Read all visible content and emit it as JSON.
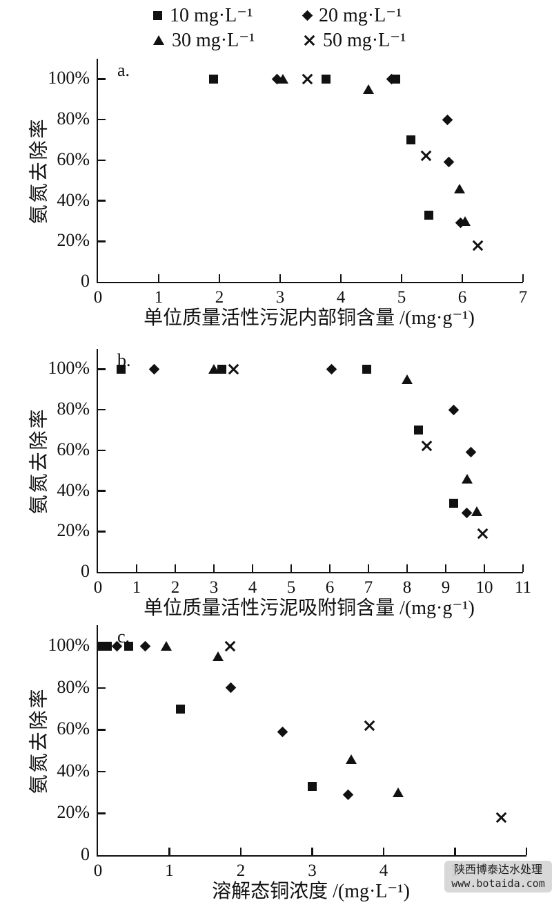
{
  "colors": {
    "marker": "#111111",
    "axis": "#111111",
    "watermark_bg": "#d5d5d5"
  },
  "legend": {
    "items": [
      {
        "label": "10 mg·L⁻¹",
        "marker": "square"
      },
      {
        "label": "20 mg·L⁻¹",
        "marker": "diamond"
      },
      {
        "label": "30 mg·L⁻¹",
        "marker": "triangle"
      },
      {
        "label": "50 mg·L⁻¹",
        "marker": "x"
      }
    ]
  },
  "watermark": {
    "line1": "陕西博泰达水处理",
    "line2": "www.botaida.com"
  },
  "chart_data": [
    {
      "type": "scatter",
      "panel_label": "a.",
      "xlabel": "单位质量活性污泥内部铜含量 /(mg·g⁻¹)",
      "ylabel": "氨氮去除率",
      "xlim": [
        0,
        7
      ],
      "ylim_pct": [
        0,
        110
      ],
      "grid": false,
      "xticks": [
        0,
        1,
        2,
        3,
        4,
        5,
        6,
        7
      ],
      "yticks": [
        {
          "value": 0,
          "label": "0"
        },
        {
          "value": 20,
          "label": "20%"
        },
        {
          "value": 40,
          "label": "40%"
        },
        {
          "value": 60,
          "label": "60%"
        },
        {
          "value": 80,
          "label": "80%"
        },
        {
          "value": 100,
          "label": "100%"
        }
      ],
      "series": [
        {
          "name": "10 mg·L⁻¹",
          "marker": "square",
          "points": [
            [
              1.9,
              100
            ],
            [
              3.75,
              100
            ],
            [
              4.9,
              100
            ],
            [
              5.15,
              70
            ],
            [
              5.45,
              33
            ]
          ]
        },
        {
          "name": "20 mg·L⁻¹",
          "marker": "diamond",
          "points": [
            [
              2.95,
              100
            ],
            [
              4.83,
              100
            ],
            [
              5.75,
              80
            ],
            [
              5.78,
              59
            ],
            [
              5.97,
              29
            ]
          ]
        },
        {
          "name": "30 mg·L⁻¹",
          "marker": "triangle",
          "points": [
            [
              3.05,
              100
            ],
            [
              4.45,
              95
            ],
            [
              5.95,
              46
            ],
            [
              6.05,
              30
            ]
          ]
        },
        {
          "name": "50 mg·L⁻¹",
          "marker": "x",
          "points": [
            [
              3.45,
              100
            ],
            [
              5.4,
              62
            ],
            [
              6.25,
              18
            ]
          ]
        }
      ]
    },
    {
      "type": "scatter",
      "panel_label": "b.",
      "xlabel": "单位质量活性污泥吸附铜含量 /(mg·g⁻¹)",
      "ylabel": "氨氮去除率",
      "xlim": [
        0,
        11
      ],
      "ylim_pct": [
        0,
        110
      ],
      "grid": false,
      "xticks": [
        0,
        1,
        2,
        3,
        4,
        5,
        6,
        7,
        8,
        9,
        10,
        11
      ],
      "yticks": [
        {
          "value": 0,
          "label": "0"
        },
        {
          "value": 20,
          "label": "20%"
        },
        {
          "value": 40,
          "label": "40%"
        },
        {
          "value": 60,
          "label": "60%"
        },
        {
          "value": 80,
          "label": "80%"
        },
        {
          "value": 100,
          "label": "100%"
        }
      ],
      "series": [
        {
          "name": "10 mg·L⁻¹",
          "marker": "square",
          "points": [
            [
              0.6,
              100
            ],
            [
              3.2,
              100
            ],
            [
              6.95,
              100
            ],
            [
              8.3,
              70
            ],
            [
              9.2,
              34
            ]
          ]
        },
        {
          "name": "20 mg·L⁻¹",
          "marker": "diamond",
          "points": [
            [
              1.45,
              100
            ],
            [
              6.05,
              100
            ],
            [
              9.2,
              80
            ],
            [
              9.65,
              59
            ],
            [
              9.55,
              29
            ]
          ]
        },
        {
          "name": "30 mg·L⁻¹",
          "marker": "triangle",
          "points": [
            [
              3.0,
              100
            ],
            [
              8.0,
              95
            ],
            [
              9.55,
              46
            ],
            [
              9.8,
              30
            ]
          ]
        },
        {
          "name": "50 mg·L⁻¹",
          "marker": "x",
          "points": [
            [
              3.5,
              100
            ],
            [
              8.5,
              62
            ],
            [
              9.95,
              19
            ]
          ]
        }
      ]
    },
    {
      "type": "scatter",
      "panel_label": "c.",
      "xlabel": "溶解态铜浓度 /(mg·L⁻¹)",
      "ylabel": "氨氮去除率",
      "xlim": [
        0,
        6
      ],
      "ylim_pct": [
        0,
        110
      ],
      "grid": false,
      "xticks": [
        0,
        1,
        2,
        3,
        4,
        5,
        6
      ],
      "yticks": [
        {
          "value": 0,
          "label": "0"
        },
        {
          "value": 20,
          "label": "20%"
        },
        {
          "value": 40,
          "label": "40%"
        },
        {
          "value": 60,
          "label": "60%"
        },
        {
          "value": 80,
          "label": "80%"
        },
        {
          "value": 100,
          "label": "100%"
        }
      ],
      "series": [
        {
          "name": "10 mg·L⁻¹",
          "marker": "square",
          "points": [
            [
              0.05,
              100
            ],
            [
              0.13,
              100
            ],
            [
              0.43,
              100
            ],
            [
              1.15,
              70
            ],
            [
              3.0,
              33
            ]
          ]
        },
        {
          "name": "20 mg·L⁻¹",
          "marker": "diamond",
          "points": [
            [
              0.27,
              100
            ],
            [
              0.66,
              100
            ],
            [
              1.86,
              80
            ],
            [
              2.58,
              59
            ],
            [
              3.5,
              29
            ]
          ]
        },
        {
          "name": "30 mg·L⁻¹",
          "marker": "triangle",
          "points": [
            [
              0.96,
              100
            ],
            [
              1.68,
              95
            ],
            [
              3.55,
              46
            ],
            [
              4.2,
              30
            ]
          ]
        },
        {
          "name": "50 mg·L⁻¹",
          "marker": "x",
          "points": [
            [
              1.85,
              100
            ],
            [
              3.8,
              62
            ],
            [
              5.65,
              18
            ]
          ]
        }
      ]
    }
  ]
}
